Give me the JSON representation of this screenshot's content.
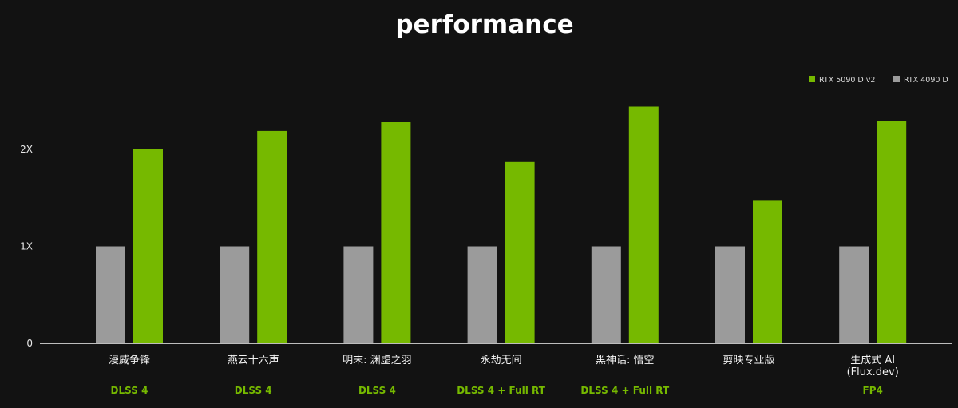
{
  "chart_data": {
    "type": "bar",
    "title": "performance",
    "categories": [
      "漫威争锋",
      "燕云十六声",
      "明末: 渊虚之羽",
      "永劫无间",
      "黑神话: 悟空",
      "剪映专业版",
      "生成式 AI\n(Flux.dev)"
    ],
    "sublabels": [
      "DLSS 4",
      "DLSS 4",
      "DLSS 4",
      "DLSS 4 + Full RT",
      "DLSS 4 + Full RT",
      "",
      "FP4"
    ],
    "series": [
      {
        "name": "RTX 4090 D",
        "color": "#9b9b9b",
        "values": [
          1,
          1,
          1,
          1,
          1,
          1,
          1
        ]
      },
      {
        "name": "RTX 5090 D v2",
        "color": "#76b900",
        "values": [
          2.0,
          2.19,
          2.28,
          1.87,
          2.44,
          1.47,
          2.29
        ]
      }
    ],
    "yticks": [
      {
        "value": 0,
        "label": "0"
      },
      {
        "value": 1,
        "label": "1X"
      },
      {
        "value": 2,
        "label": "2X"
      }
    ],
    "ylim": [
      0,
      2.7
    ],
    "legend": {
      "position": "top-right",
      "order": [
        "RTX 5090 D v2",
        "RTX 4090 D"
      ]
    },
    "grid": false,
    "background": "#121212",
    "axis_color": "#bdbdbd"
  }
}
